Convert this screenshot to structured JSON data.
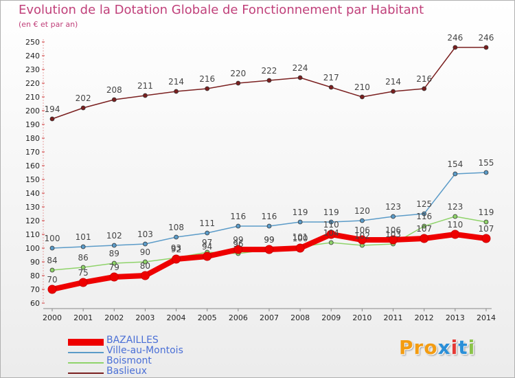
{
  "chart_data": {
    "type": "line",
    "title": "Evolution de la Dotation Globale de Fonctionnement par Habitant",
    "subtitle": "(en € et par an)",
    "categories": [
      "2000",
      "2001",
      "2002",
      "2003",
      "2004",
      "2005",
      "2006",
      "2007",
      "2008",
      "2009",
      "2010",
      "2011",
      "2012",
      "2013",
      "2014"
    ],
    "ylim": [
      60,
      250
    ],
    "yticks": [
      60,
      70,
      80,
      90,
      100,
      110,
      120,
      130,
      140,
      150,
      160,
      170,
      180,
      190,
      200,
      210,
      220,
      230,
      240,
      250
    ],
    "grid": false,
    "legend_position": "bottom-left",
    "series": [
      {
        "name": "Baslieux",
        "color": "#7a1f1f",
        "values": [
          194,
          202,
          208,
          211,
          214,
          216,
          220,
          222,
          224,
          217,
          210,
          214,
          216,
          246,
          246
        ]
      },
      {
        "name": "Ville-au-Montois",
        "color": "#5b9bc8",
        "values": [
          100,
          101,
          102,
          103,
          108,
          111,
          116,
          116,
          119,
          119,
          120,
          123,
          125,
          154,
          155
        ]
      },
      {
        "name": "Boismont",
        "color": "#8fd36a",
        "values": [
          84,
          86,
          89,
          90,
          93,
          97,
          96,
          99,
          101,
          104,
          102,
          103,
          116,
          123,
          119
        ]
      },
      {
        "name": "BAZAILLES",
        "color": "#ee0000",
        "values": [
          70,
          75,
          79,
          80,
          92,
          94,
          99,
          99,
          100,
          110,
          106,
          106,
          107,
          110,
          107
        ]
      }
    ],
    "legend_order": [
      "BAZAILLES",
      "Ville-au-Montois",
      "Boismont",
      "Baslieux"
    ]
  },
  "logo": {
    "text": "Proxiti",
    "colors": [
      "#f39c12",
      "#f39c12",
      "#f39c12",
      "#2a8fd8",
      "#e53935",
      "#2a8fd8",
      "#8bc34a"
    ]
  }
}
